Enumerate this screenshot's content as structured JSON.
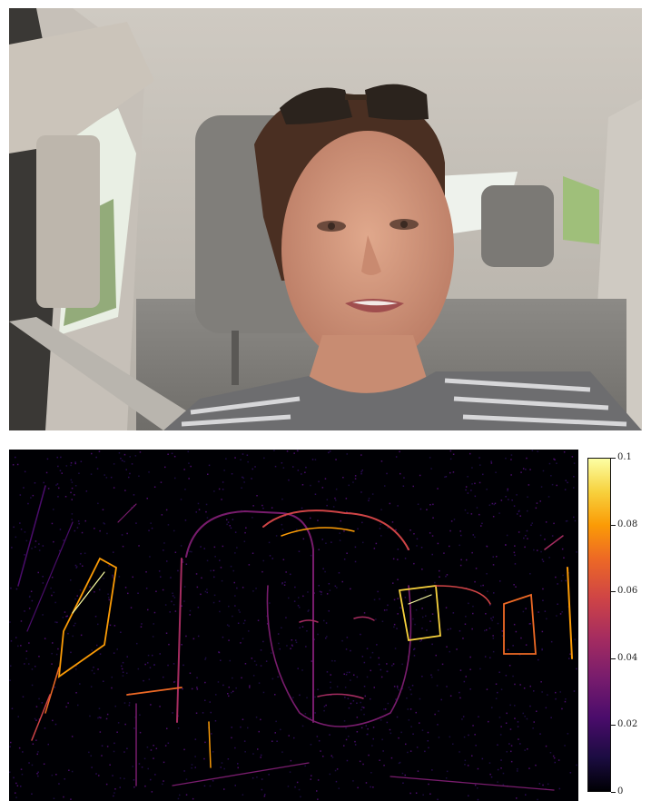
{
  "photo": {
    "description_icon": "driver-selfie-photo"
  },
  "heatmap": {
    "colormap": "inferno",
    "background_color": "#000004",
    "accent_colors": [
      "#4a0c6b",
      "#a52c60",
      "#ed6925",
      "#fb9b06",
      "#fcffa4"
    ]
  },
  "colorbar": {
    "ticks": [
      {
        "value": 0.1,
        "label": "0.1"
      },
      {
        "value": 0.08,
        "label": "0.08"
      },
      {
        "value": 0.06,
        "label": "0.06"
      },
      {
        "value": 0.04,
        "label": "0.04"
      },
      {
        "value": 0.02,
        "label": "0.02"
      },
      {
        "value": 0,
        "label": "0"
      }
    ],
    "range": [
      0,
      0.1
    ]
  }
}
